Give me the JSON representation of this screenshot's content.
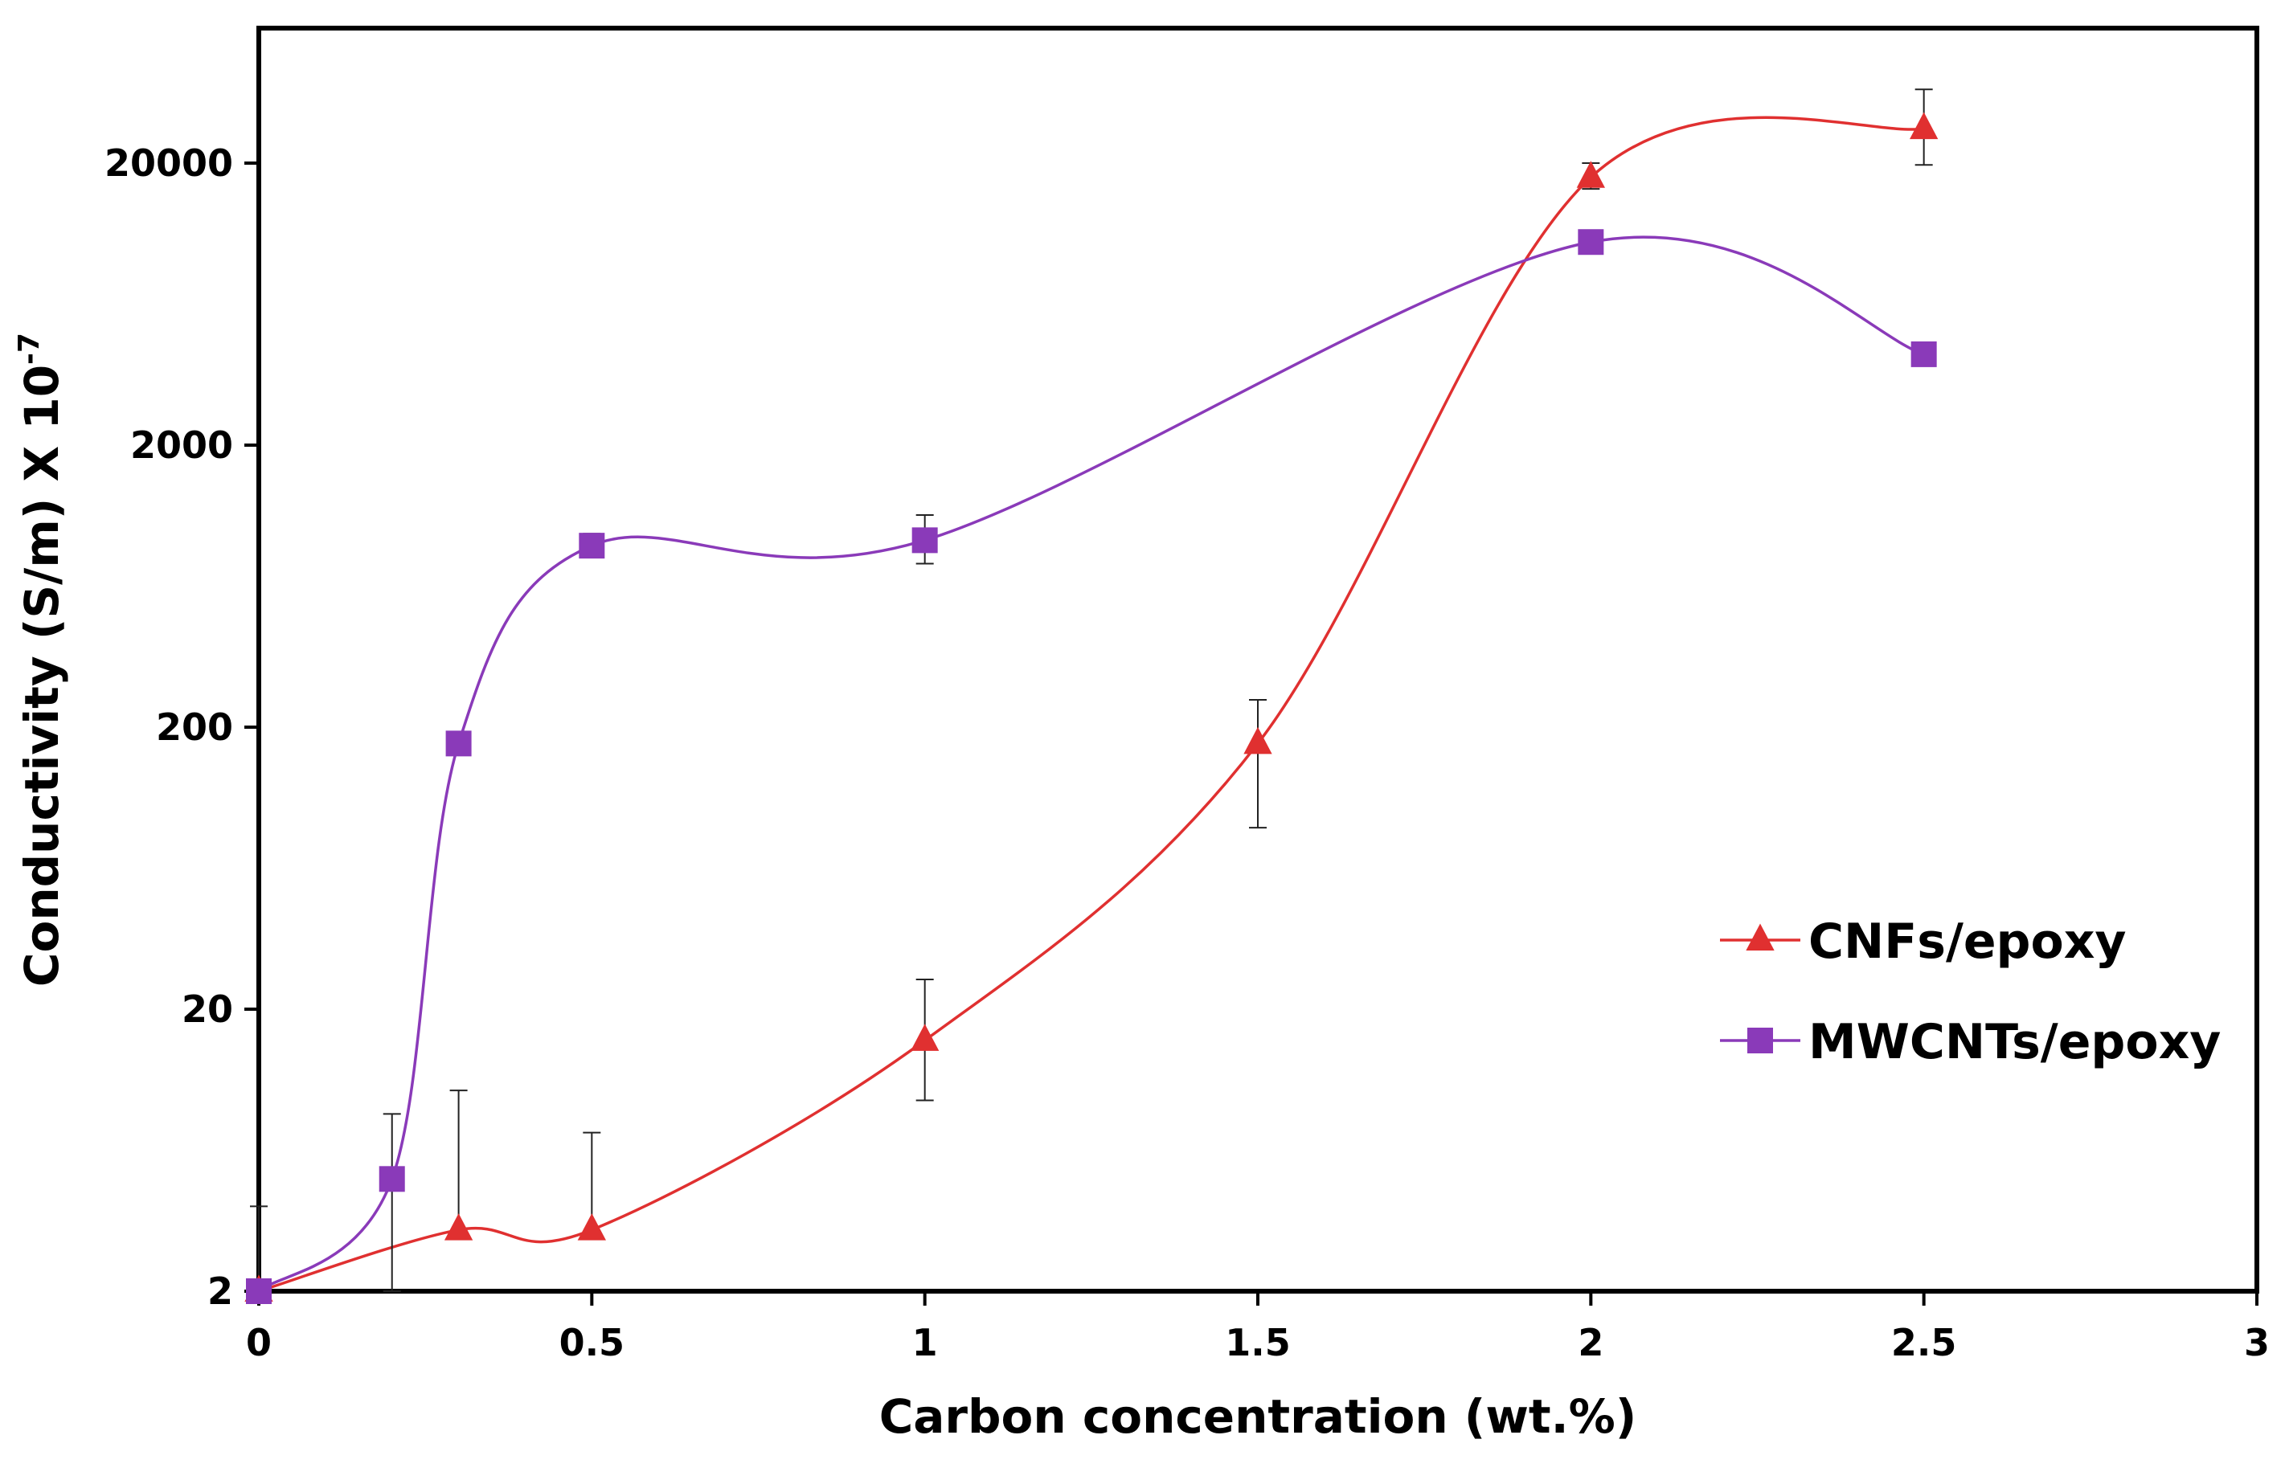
{
  "chart_data": {
    "type": "line",
    "title": "",
    "xlabel": "Carbon concentration (wt.%)",
    "ylabel": {
      "main": "Conductivity (S/m) X 10",
      "exponent": "-7"
    },
    "xlim": [
      0,
      3
    ],
    "ylim": [
      2,
      60000
    ],
    "yscale": "log",
    "x_ticks": [
      {
        "value": 0,
        "label": "0"
      },
      {
        "value": 0.5,
        "label": "0.5"
      },
      {
        "value": 1,
        "label": "1"
      },
      {
        "value": 1.5,
        "label": "1.5"
      },
      {
        "value": 2,
        "label": "2"
      },
      {
        "value": 2.5,
        "label": "2.5"
      },
      {
        "value": 3,
        "label": "3"
      }
    ],
    "y_ticks": [
      {
        "value": 2,
        "label": "2"
      },
      {
        "value": 20,
        "label": "20"
      },
      {
        "value": 200,
        "label": "200"
      },
      {
        "value": 2000,
        "label": "2000"
      },
      {
        "value": 20000,
        "label": "20000"
      }
    ],
    "grid": false,
    "legend_position": "right",
    "series": [
      {
        "name": "CNFs/epoxy",
        "color": "#e03030",
        "marker": "triangle",
        "points": [
          {
            "x": 0,
            "y": 2,
            "err_low": 0,
            "err_high": 2
          },
          {
            "x": 0.3,
            "y": 3.3,
            "err_low": 0,
            "err_high": 7
          },
          {
            "x": 0.5,
            "y": 3.3,
            "err_low": 0,
            "err_high": 4
          },
          {
            "x": 1,
            "y": 15.5,
            "err_low": 6,
            "err_high": 10
          },
          {
            "x": 1.5,
            "y": 175,
            "err_low": 87,
            "err_high": 75
          },
          {
            "x": 2,
            "y": 17800,
            "err_low": 1600,
            "err_high": 2200
          },
          {
            "x": 2.5,
            "y": 26500,
            "err_low": 6800,
            "err_high": 10000
          }
        ]
      },
      {
        "name": "MWCNTs/epoxy",
        "color": "#8a3ab9",
        "marker": "square",
        "points": [
          {
            "x": 0,
            "y": 2,
            "err_low": 0,
            "err_high": 0
          },
          {
            "x": 0.2,
            "y": 5,
            "err_low": 3,
            "err_high": 3.5
          },
          {
            "x": 0.3,
            "y": 175,
            "err_low": 0,
            "err_high": 0
          },
          {
            "x": 0.5,
            "y": 880,
            "err_low": 80,
            "err_high": 90
          },
          {
            "x": 1,
            "y": 920,
            "err_low": 160,
            "err_high": 210
          },
          {
            "x": 2,
            "y": 10500,
            "err_low": 0,
            "err_high": 0
          },
          {
            "x": 2.5,
            "y": 4200,
            "err_low": 0,
            "err_high": 0
          }
        ]
      }
    ]
  }
}
